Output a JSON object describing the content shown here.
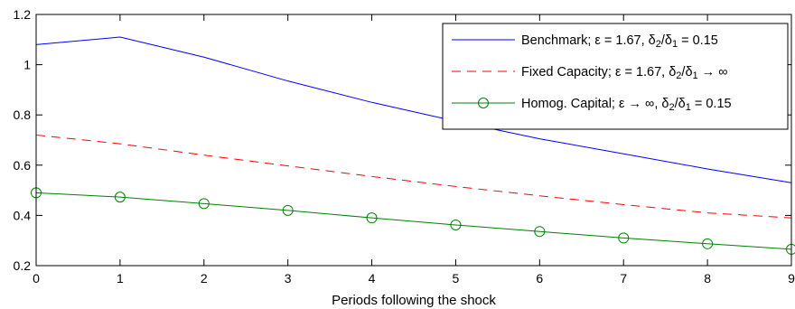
{
  "chart_data": {
    "type": "line",
    "title": "",
    "xlabel": "Periods following the shock",
    "ylabel": "",
    "xlim": [
      0,
      9
    ],
    "ylim": [
      0.2,
      1.2
    ],
    "x": [
      0,
      1,
      2,
      3,
      4,
      5,
      6,
      7,
      8,
      9
    ],
    "xticks": [
      "0",
      "1",
      "2",
      "3",
      "4",
      "5",
      "6",
      "7",
      "8",
      "9"
    ],
    "yticks": [
      "0.2",
      "0.4",
      "0.6",
      "0.8",
      "1",
      "1.2"
    ],
    "grid": false,
    "legend_position": "top-right",
    "series": [
      {
        "name": "Benchmark; ε = 1.67, δ2/δ1 = 0.15",
        "legend": {
          "main": "Benchmark;  ε = 1.67, δ",
          "s1": "2",
          "mid": "/δ",
          "s2": "1",
          "tail": " = 0.15"
        },
        "color": "#0000ff",
        "style": "solid",
        "marker": "none",
        "values": [
          1.08,
          1.11,
          1.03,
          0.935,
          0.85,
          0.775,
          0.705,
          0.645,
          0.585,
          0.53
        ]
      },
      {
        "name": "Fixed Capacity; ε = 1.67, δ2/δ1 → ∞",
        "legend": {
          "main": "Fixed Capacity; ε = 1.67, δ",
          "s1": "2",
          "mid": "/δ",
          "s2": "1",
          "tail": " → ∞"
        },
        "color": "#ff0000",
        "style": "dashed",
        "marker": "none",
        "values": [
          0.72,
          0.685,
          0.64,
          0.597,
          0.555,
          0.515,
          0.478,
          0.443,
          0.41,
          0.39
        ]
      },
      {
        "name": "Homog. Capital; ε → ∞, δ2/δ1 = 0.15",
        "legend": {
          "main": "Homog. Capital; ε → ∞, δ",
          "s1": "2",
          "mid": "/δ",
          "s2": "1",
          "tail": " = 0.15"
        },
        "color": "#008000",
        "style": "solid",
        "marker": "circle",
        "values": [
          0.49,
          0.473,
          0.447,
          0.42,
          0.39,
          0.362,
          0.336,
          0.31,
          0.287,
          0.265
        ]
      }
    ]
  }
}
